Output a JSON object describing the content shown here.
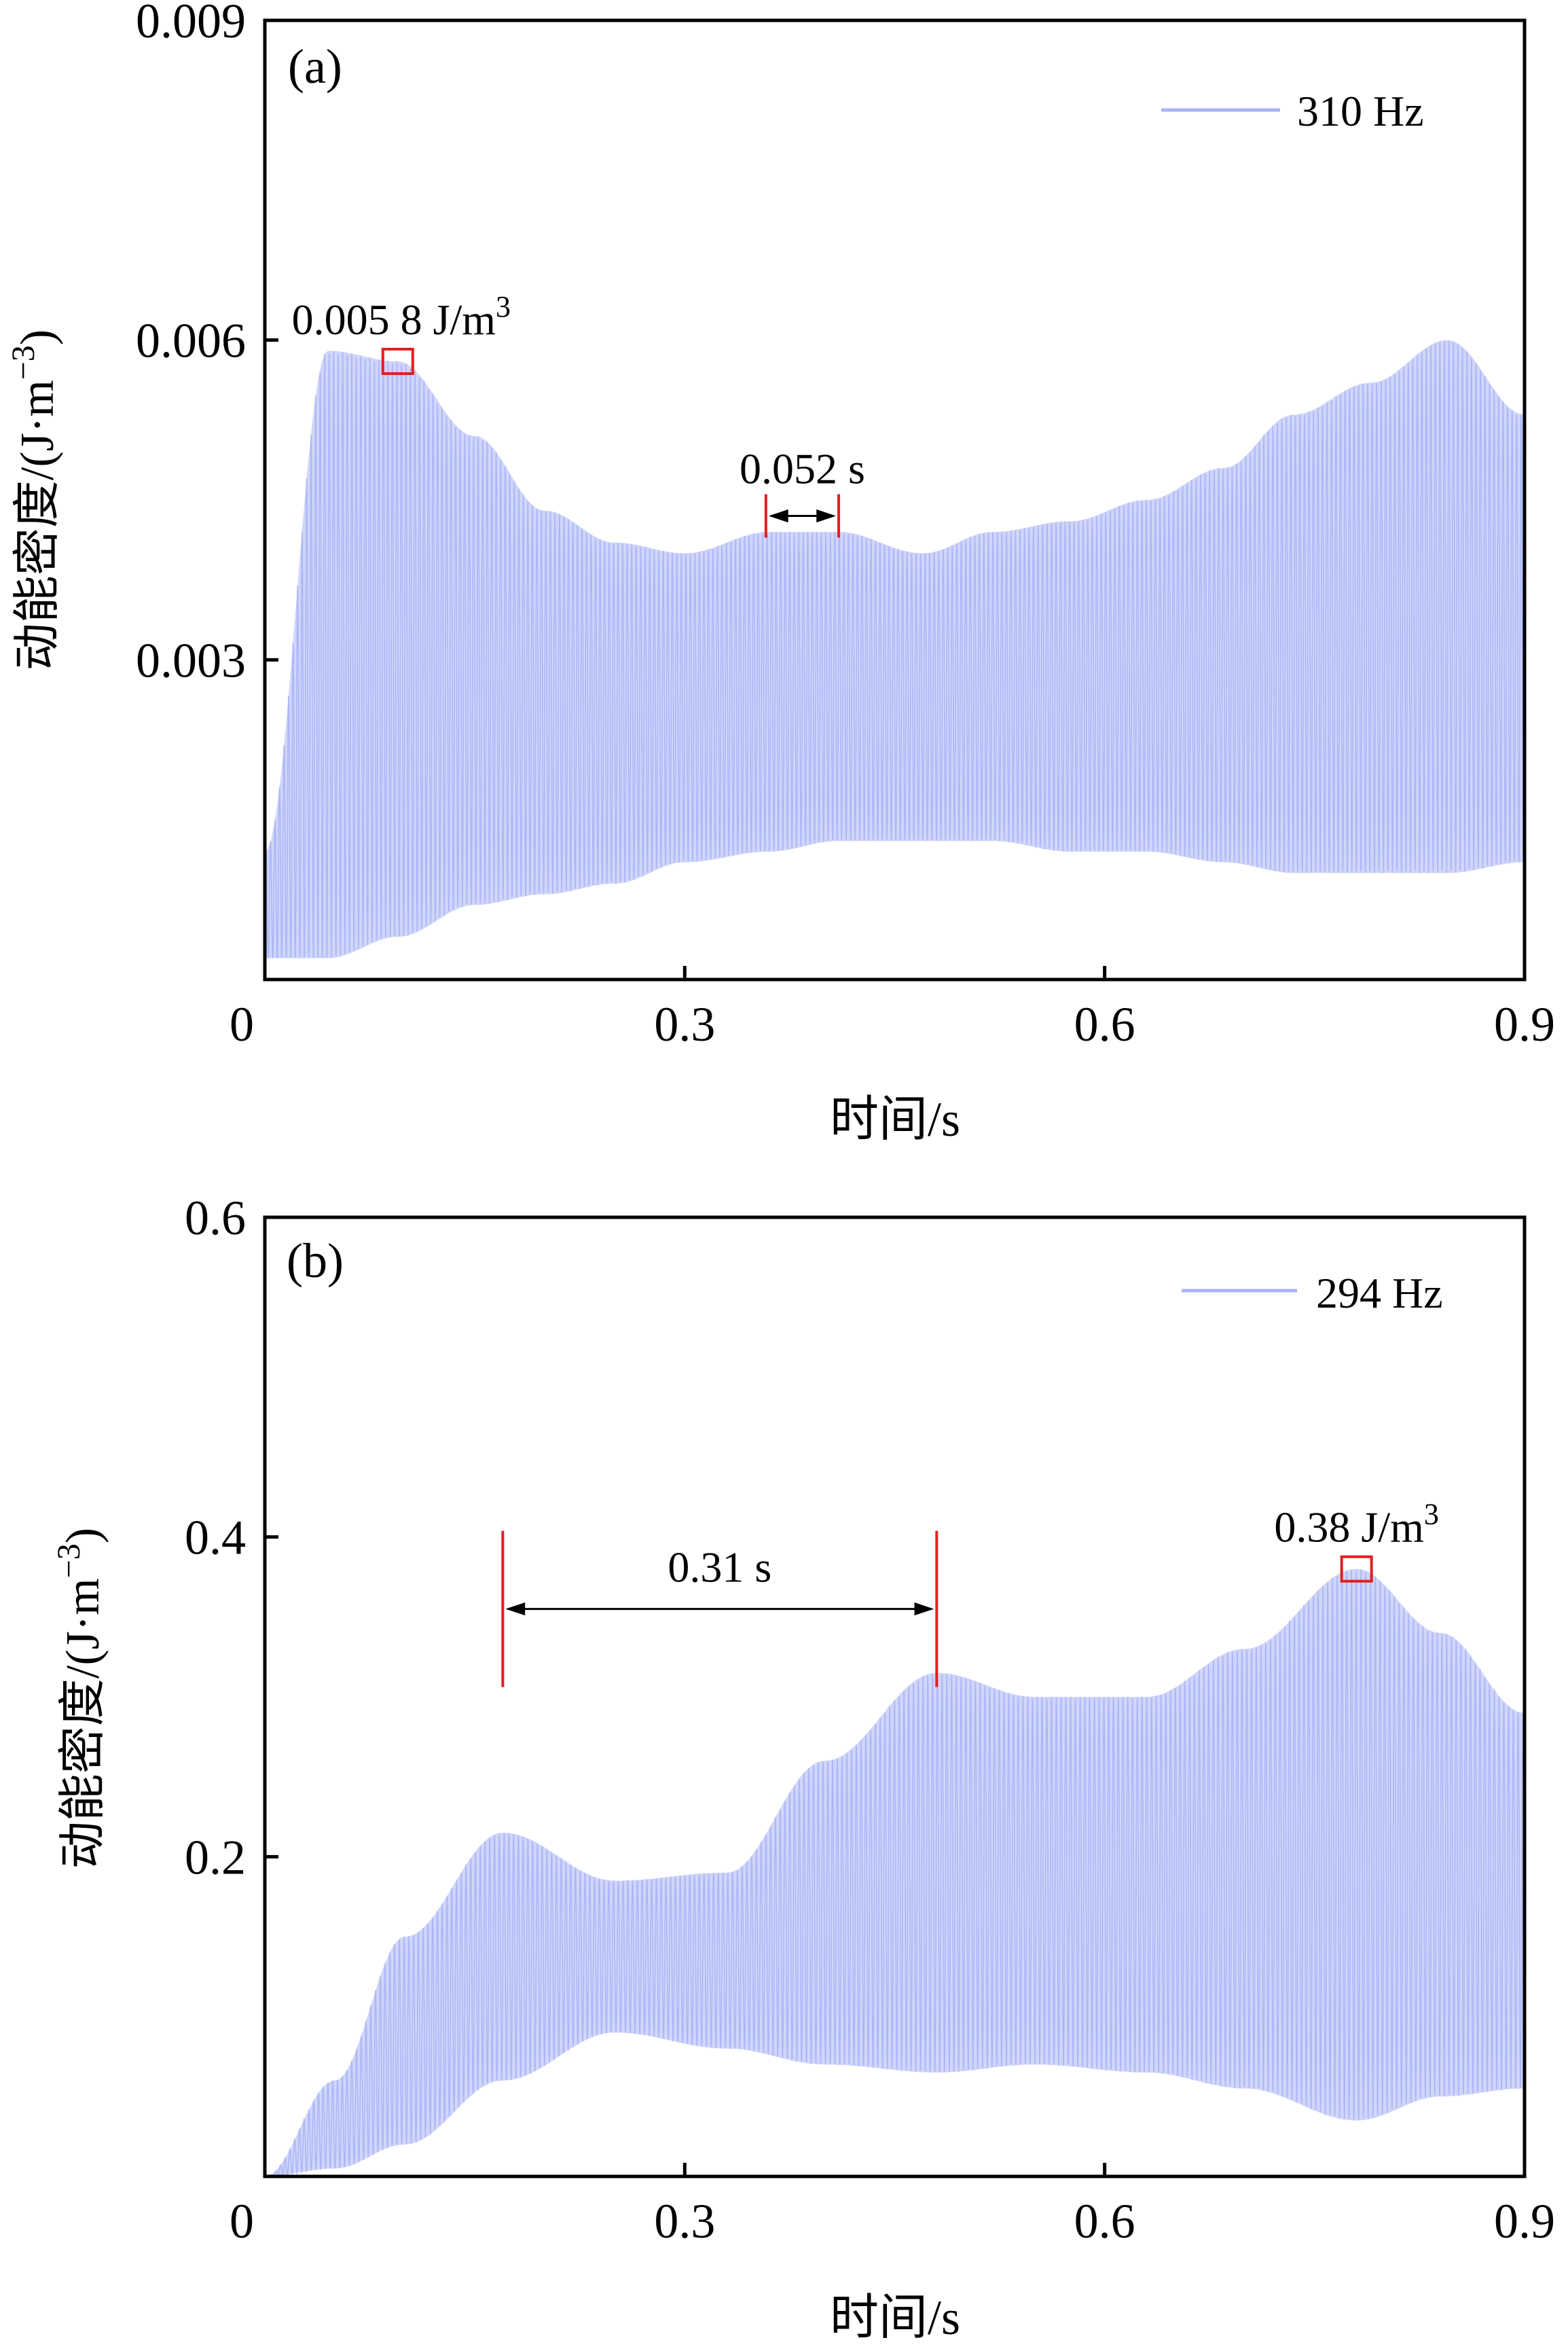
{
  "figure": {
    "background": "#ffffff"
  },
  "chart_data": [
    {
      "type": "area",
      "panel_label": "(a)",
      "legend": "310 Hz",
      "series_color": "#a8b4f5",
      "xlabel": "时间/s",
      "ylabel": "动能密度/(J·m",
      "ylabel_exp": "−3",
      "ylabel_close": ")",
      "xlim": [
        0,
        0.9
      ],
      "ylim": [
        0,
        0.009
      ],
      "xticks": [
        0,
        0.3,
        0.6,
        0.9
      ],
      "xtick_labels": [
        "0",
        "0.3",
        "0.6",
        "0.9"
      ],
      "yticks": [
        0.003,
        0.006,
        0.009
      ],
      "ytick_labels": [
        "0.003",
        "0.006",
        "0.009"
      ],
      "carrier_frequency_hz": 310,
      "envelope": {
        "t": [
          0.0,
          0.045,
          0.095,
          0.15,
          0.2,
          0.25,
          0.3,
          0.36,
          0.41,
          0.47,
          0.52,
          0.575,
          0.63,
          0.685,
          0.735,
          0.79,
          0.845,
          0.9
        ],
        "upper": [
          0.0012,
          0.0059,
          0.0058,
          0.0051,
          0.0044,
          0.0041,
          0.004,
          0.0042,
          0.0042,
          0.004,
          0.0042,
          0.0043,
          0.0045,
          0.0048,
          0.0053,
          0.0056,
          0.006,
          0.0053
        ],
        "lower": [
          0.0002,
          0.0002,
          0.0004,
          0.0007,
          0.0008,
          0.0009,
          0.0011,
          0.0012,
          0.0013,
          0.0013,
          0.0013,
          0.0012,
          0.0012,
          0.0011,
          0.001,
          0.001,
          0.001,
          0.0011
        ]
      },
      "annotations": {
        "peak_text": "0.005 8 J/m",
        "peak_exp": "3",
        "peak_t": 0.095,
        "peak_value": 0.0058,
        "interval_text": "0.052 s",
        "interval_t0": 0.358,
        "interval_t1": 0.41,
        "interval_y": 0.00435
      }
    },
    {
      "type": "area",
      "panel_label": "(b)",
      "legend": "294 Hz",
      "series_color": "#a8b4f5",
      "xlabel": "时间/s",
      "ylabel": "动能密度/(J·m",
      "ylabel_exp": "−3",
      "ylabel_close": ")",
      "xlim": [
        0,
        0.9
      ],
      "ylim": [
        0,
        0.6
      ],
      "xticks": [
        0,
        0.3,
        0.6,
        0.9
      ],
      "xtick_labels": [
        "0",
        "0.3",
        "0.6",
        "0.9"
      ],
      "yticks": [
        0.2,
        0.4,
        0.6
      ],
      "ytick_labels": [
        "0.2",
        "0.4",
        "0.6"
      ],
      "carrier_frequency_hz": 294,
      "envelope": {
        "t": [
          0.0,
          0.05,
          0.1,
          0.17,
          0.25,
          0.33,
          0.4,
          0.48,
          0.55,
          0.63,
          0.7,
          0.78,
          0.84,
          0.9
        ],
        "upper": [
          0.0,
          0.06,
          0.15,
          0.215,
          0.185,
          0.19,
          0.26,
          0.315,
          0.3,
          0.3,
          0.33,
          0.38,
          0.34,
          0.29
        ],
        "lower": [
          0.0,
          0.005,
          0.02,
          0.06,
          0.09,
          0.08,
          0.07,
          0.065,
          0.07,
          0.065,
          0.055,
          0.035,
          0.05,
          0.055
        ]
      },
      "annotations": {
        "peak_text": "0.38 J/m",
        "peak_exp": "3",
        "peak_t": 0.78,
        "peak_value": 0.38,
        "interval_text": "0.31 s",
        "interval_t0": 0.17,
        "interval_t1": 0.48,
        "interval_y": 0.355
      }
    }
  ]
}
